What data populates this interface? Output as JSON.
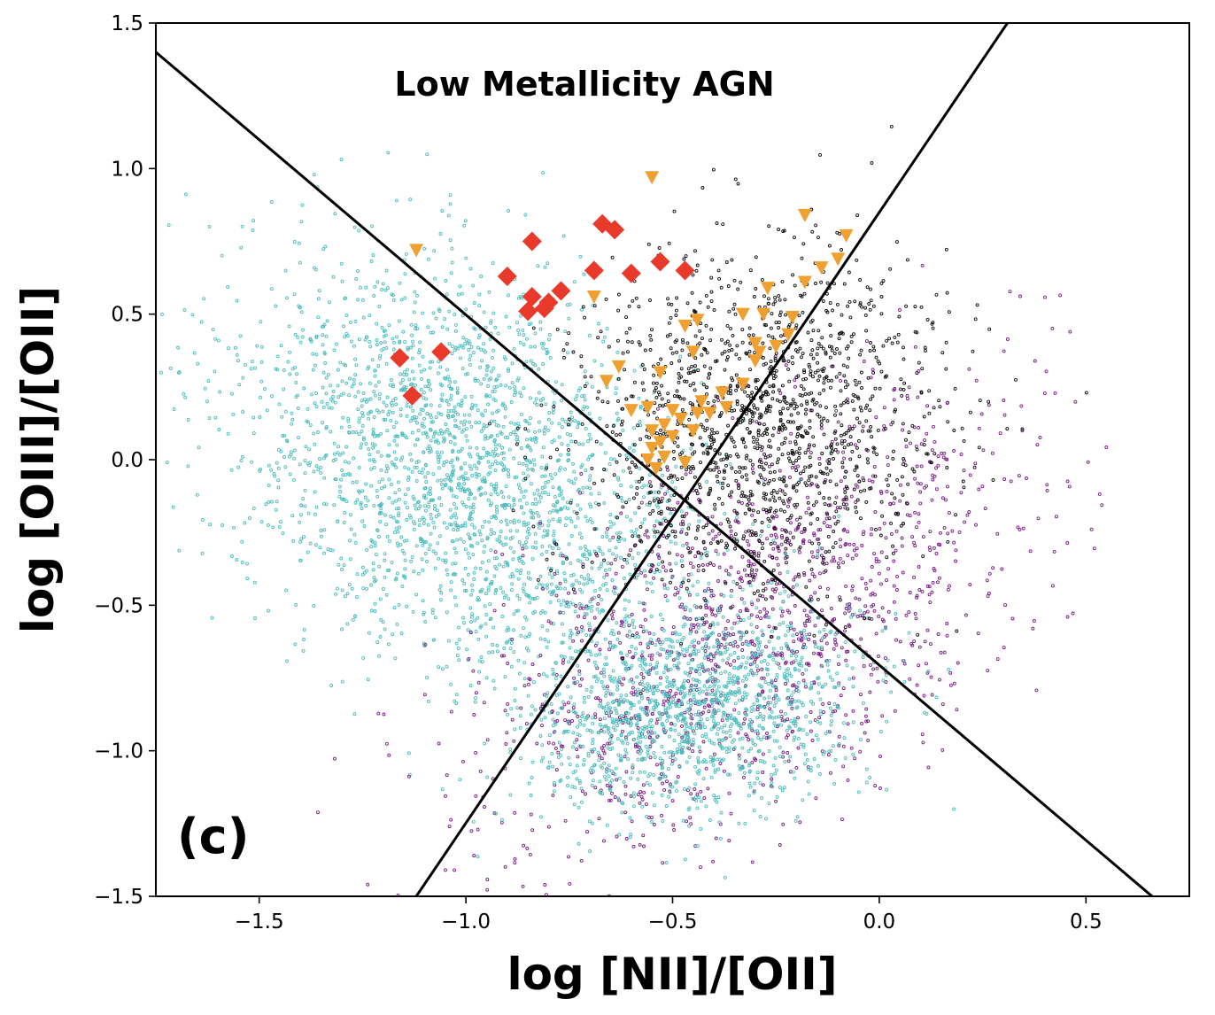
{
  "chart_data": {
    "type": "scatter",
    "title": "",
    "xlabel": "log [NII]/[OII]",
    "ylabel": "log [OIII]/[OII]",
    "xlim": [
      -1.75,
      0.75
    ],
    "ylim": [
      -1.5,
      1.5
    ],
    "xticks": [
      -1.5,
      -1.0,
      -0.5,
      0.0,
      0.5
    ],
    "xtick_labels": [
      "−1.5",
      "−1.0",
      "−0.5",
      "0.0",
      "0.5"
    ],
    "yticks": [
      -1.5,
      -1.0,
      -0.5,
      0.0,
      0.5,
      1.0,
      1.5
    ],
    "ytick_labels": [
      "−1.5",
      "−1.0",
      "−0.5",
      "0.0",
      "0.5",
      "1.0",
      "1.5"
    ],
    "grid": false,
    "annotations": [
      {
        "text": "Low Metallicity AGN",
        "x": -0.68,
        "y": 1.27
      },
      {
        "text": "(c)",
        "x": -1.63,
        "y": -1.35
      }
    ],
    "lines": [
      {
        "name": "diagonal-divider-descending",
        "color": "#000000",
        "x": [
          -1.75,
          0.66
        ],
        "y": [
          1.4,
          -1.5
        ]
      },
      {
        "name": "diagonal-divider-ascending",
        "color": "#000000",
        "x": [
          -1.12,
          0.31
        ],
        "y": [
          -1.5,
          1.5
        ]
      }
    ],
    "series": [
      {
        "name": "cyan-population-upper-left",
        "color": "#4dbdbd",
        "marker": "dot",
        "cloud": {
          "cx": -1.0,
          "cy": -0.05,
          "sx": 0.28,
          "sy": 0.36,
          "rho": -0.35,
          "n": 2400
        }
      },
      {
        "name": "cyan-population-lower",
        "color": "#4dbdbd",
        "marker": "dot",
        "cloud": {
          "cx": -0.45,
          "cy": -0.85,
          "sx": 0.2,
          "sy": 0.18,
          "rho": 0.2,
          "n": 1400
        }
      },
      {
        "name": "black-population",
        "color": "#111111",
        "marker": "dot",
        "cloud": {
          "cx": -0.3,
          "cy": 0.12,
          "sx": 0.22,
          "sy": 0.28,
          "rho": 0.1,
          "n": 1500
        }
      },
      {
        "name": "purple-population",
        "color": "#7a1f86",
        "marker": "dot",
        "cloud": {
          "cx": -0.3,
          "cy": -0.55,
          "sx": 0.32,
          "sy": 0.38,
          "rho": 0.55,
          "n": 1500
        }
      },
      {
        "name": "red-diamonds",
        "color": "#e8392b",
        "marker": "diamond",
        "points": [
          [
            -1.16,
            0.35
          ],
          [
            -1.06,
            0.37
          ],
          [
            -1.13,
            0.22
          ],
          [
            -0.9,
            0.63
          ],
          [
            -0.84,
            0.75
          ],
          [
            -0.84,
            0.56
          ],
          [
            -0.85,
            0.51
          ],
          [
            -0.81,
            0.52
          ],
          [
            -0.8,
            0.54
          ],
          [
            -0.77,
            0.58
          ],
          [
            -0.69,
            0.65
          ],
          [
            -0.67,
            0.81
          ],
          [
            -0.64,
            0.79
          ],
          [
            -0.6,
            0.64
          ],
          [
            -0.53,
            0.68
          ],
          [
            -0.47,
            0.65
          ]
        ]
      },
      {
        "name": "orange-triangles",
        "color": "#f0a030",
        "marker": "triangle-down",
        "points": [
          [
            -1.12,
            0.72
          ],
          [
            -0.69,
            0.56
          ],
          [
            -0.55,
            0.97
          ],
          [
            -0.18,
            0.84
          ],
          [
            -0.08,
            0.77
          ],
          [
            -0.1,
            0.69
          ],
          [
            -0.14,
            0.66
          ],
          [
            -0.18,
            0.61
          ],
          [
            -0.27,
            0.59
          ],
          [
            -0.33,
            0.5
          ],
          [
            -0.28,
            0.5
          ],
          [
            -0.21,
            0.49
          ],
          [
            -0.44,
            0.48
          ],
          [
            -0.47,
            0.46
          ],
          [
            -0.22,
            0.43
          ],
          [
            -0.3,
            0.4
          ],
          [
            -0.25,
            0.39
          ],
          [
            -0.29,
            0.37
          ],
          [
            -0.45,
            0.37
          ],
          [
            -0.3,
            0.34
          ],
          [
            -0.63,
            0.32
          ],
          [
            -0.53,
            0.3
          ],
          [
            -0.66,
            0.27
          ],
          [
            -0.33,
            0.26
          ],
          [
            -0.38,
            0.23
          ],
          [
            -0.43,
            0.2
          ],
          [
            -0.37,
            0.18
          ],
          [
            -0.6,
            0.17
          ],
          [
            -0.56,
            0.18
          ],
          [
            -0.5,
            0.17
          ],
          [
            -0.44,
            0.16
          ],
          [
            -0.41,
            0.16
          ],
          [
            -0.48,
            0.14
          ],
          [
            -0.52,
            0.12
          ],
          [
            -0.55,
            0.1
          ],
          [
            -0.5,
            0.08
          ],
          [
            -0.53,
            0.06
          ],
          [
            -0.45,
            0.1
          ],
          [
            -0.55,
            0.04
          ],
          [
            -0.52,
            0.01
          ],
          [
            -0.47,
            -0.01
          ],
          [
            -0.54,
            -0.03
          ],
          [
            -0.56,
            0.0
          ]
        ]
      }
    ]
  }
}
